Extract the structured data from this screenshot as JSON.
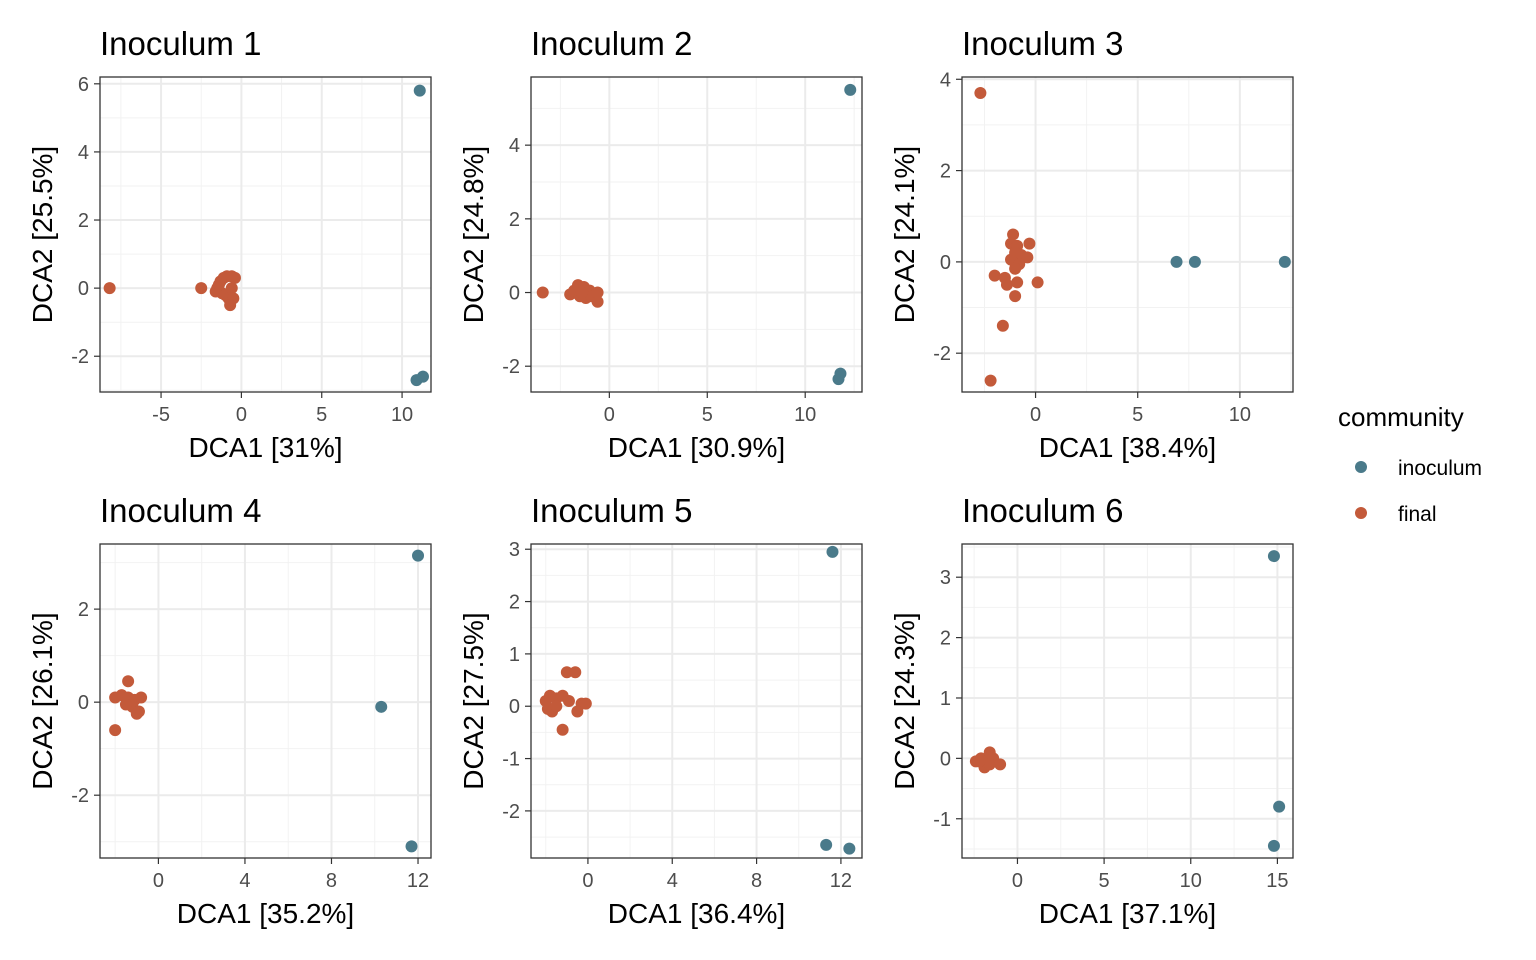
{
  "legend": {
    "title": "community",
    "items": [
      {
        "label": "inoculum",
        "color": "#4a7a8a"
      },
      {
        "label": "final",
        "color": "#c35a3a"
      }
    ]
  },
  "chart_data": [
    {
      "type": "scatter",
      "title": "Inoculum 1",
      "xlabel": "DCA1   [31%]",
      "ylabel": "DCA2   [25.5%]",
      "xlim": [
        -8.8,
        11.8
      ],
      "ylim": [
        -3.05,
        6.2
      ],
      "xticks": [
        -5,
        0,
        5,
        10
      ],
      "xtick_labels": [
        "-5",
        "0",
        "5",
        "10"
      ],
      "yticks": [
        -2,
        0,
        2,
        4,
        6
      ],
      "ytick_labels": [
        "-2",
        "0",
        "2",
        "4",
        "6"
      ],
      "grid": true,
      "series": [
        {
          "name": "inoculum",
          "color": "#4a7a8a",
          "points": [
            [
              11.1,
              5.8
            ],
            [
              10.9,
              -2.7
            ],
            [
              11.3,
              -2.6
            ]
          ]
        },
        {
          "name": "final",
          "color": "#c35a3a",
          "points": [
            [
              -8.2,
              0.0
            ],
            [
              -2.5,
              0.0
            ],
            [
              -1.5,
              0.0
            ],
            [
              -1.3,
              0.2
            ],
            [
              -1.1,
              0.3
            ],
            [
              -0.9,
              0.35
            ],
            [
              -0.6,
              0.35
            ],
            [
              -0.4,
              0.3
            ],
            [
              -1.6,
              -0.1
            ],
            [
              -1.2,
              -0.15
            ],
            [
              -1.0,
              -0.2
            ],
            [
              -0.8,
              -0.3
            ],
            [
              -0.5,
              -0.3
            ],
            [
              -0.7,
              -0.5
            ],
            [
              -1.4,
              0.1
            ],
            [
              -0.6,
              0.0
            ]
          ]
        }
      ]
    },
    {
      "type": "scatter",
      "title": "Inoculum 2",
      "xlabel": "DCA1   [30.9%]",
      "ylabel": "DCA2   [24.8%]",
      "xlim": [
        -4.0,
        12.9
      ],
      "ylim": [
        -2.7,
        5.85
      ],
      "xticks": [
        0,
        5,
        10
      ],
      "xtick_labels": [
        "0",
        "5",
        "10"
      ],
      "yticks": [
        -2,
        0,
        2,
        4
      ],
      "ytick_labels": [
        "-2",
        "0",
        "2",
        "4"
      ],
      "grid": true,
      "series": [
        {
          "name": "inoculum",
          "color": "#4a7a8a",
          "points": [
            [
              12.3,
              5.5
            ],
            [
              11.8,
              -2.2
            ],
            [
              11.7,
              -2.35
            ]
          ]
        },
        {
          "name": "final",
          "color": "#c35a3a",
          "points": [
            [
              -3.4,
              0.0
            ],
            [
              -2.0,
              -0.05
            ],
            [
              -1.6,
              0.2
            ],
            [
              -1.3,
              0.15
            ],
            [
              -1.0,
              0.05
            ],
            [
              -0.7,
              -0.1
            ],
            [
              -1.8,
              0.05
            ],
            [
              -1.5,
              -0.1
            ],
            [
              -1.2,
              -0.15
            ],
            [
              -0.9,
              -0.1
            ],
            [
              -0.6,
              -0.25
            ],
            [
              -1.4,
              0.0
            ],
            [
              -0.6,
              0.0
            ]
          ]
        }
      ]
    },
    {
      "type": "scatter",
      "title": "Inoculum 3",
      "xlabel": "DCA1   [38.4%]",
      "ylabel": "DCA2   [24.1%]",
      "xlim": [
        -3.6,
        12.6
      ],
      "ylim": [
        -2.85,
        4.05
      ],
      "xticks": [
        0,
        5,
        10
      ],
      "xtick_labels": [
        "0",
        "5",
        "10"
      ],
      "yticks": [
        -2,
        0,
        2,
        4
      ],
      "ytick_labels": [
        "-2",
        "0",
        "2",
        "4"
      ],
      "grid": true,
      "series": [
        {
          "name": "inoculum",
          "color": "#4a7a8a",
          "points": [
            [
              6.9,
              0.0
            ],
            [
              7.8,
              0.0
            ],
            [
              12.2,
              0.0
            ]
          ]
        },
        {
          "name": "final",
          "color": "#c35a3a",
          "points": [
            [
              -2.7,
              3.7
            ],
            [
              -1.1,
              0.6
            ],
            [
              -1.2,
              0.4
            ],
            [
              -0.9,
              0.35
            ],
            [
              -0.3,
              0.4
            ],
            [
              -1.0,
              0.2
            ],
            [
              -0.7,
              0.15
            ],
            [
              -0.4,
              0.1
            ],
            [
              -1.2,
              0.05
            ],
            [
              -0.8,
              -0.05
            ],
            [
              -1.0,
              -0.15
            ],
            [
              -2.0,
              -0.3
            ],
            [
              -1.5,
              -0.35
            ],
            [
              -1.4,
              -0.5
            ],
            [
              -0.9,
              -0.45
            ],
            [
              0.1,
              -0.45
            ],
            [
              -1.0,
              -0.75
            ],
            [
              -1.6,
              -1.4
            ],
            [
              -2.2,
              -2.6
            ]
          ]
        }
      ]
    },
    {
      "type": "scatter",
      "title": "Inoculum 4",
      "xlabel": "DCA1   [35.2%]",
      "ylabel": "DCA2   [26.1%]",
      "xlim": [
        -2.7,
        12.6
      ],
      "ylim": [
        -3.35,
        3.4
      ],
      "xticks": [
        0,
        4,
        8,
        12
      ],
      "xtick_labels": [
        "0",
        "4",
        "8",
        "12"
      ],
      "yticks": [
        -2,
        0,
        2
      ],
      "ytick_labels": [
        "-2",
        "0",
        "2"
      ],
      "grid": true,
      "series": [
        {
          "name": "inoculum",
          "color": "#4a7a8a",
          "points": [
            [
              12.0,
              3.15
            ],
            [
              10.3,
              -0.1
            ],
            [
              11.7,
              -3.1
            ]
          ]
        },
        {
          "name": "final",
          "color": "#c35a3a",
          "points": [
            [
              -2.0,
              0.1
            ],
            [
              -1.7,
              0.15
            ],
            [
              -1.4,
              0.1
            ],
            [
              -1.1,
              0.05
            ],
            [
              -0.8,
              0.1
            ],
            [
              -1.4,
              0.45
            ],
            [
              -1.2,
              -0.1
            ],
            [
              -0.9,
              -0.2
            ],
            [
              -1.5,
              -0.05
            ],
            [
              -1.0,
              -0.25
            ],
            [
              -2.0,
              -0.6
            ]
          ]
        }
      ]
    },
    {
      "type": "scatter",
      "title": "Inoculum 5",
      "xlabel": "DCA1   [36.4%]",
      "ylabel": "DCA2   [27.5%]",
      "xlim": [
        -2.7,
        13.0
      ],
      "ylim": [
        -2.9,
        3.1
      ],
      "xticks": [
        0,
        4,
        8,
        12
      ],
      "xtick_labels": [
        "0",
        "4",
        "8",
        "12"
      ],
      "yticks": [
        -2,
        -1,
        0,
        1,
        2,
        3
      ],
      "ytick_labels": [
        "-2",
        "-1",
        "0",
        "1",
        "2",
        "3"
      ],
      "grid": true,
      "series": [
        {
          "name": "inoculum",
          "color": "#4a7a8a",
          "points": [
            [
              11.6,
              2.95
            ],
            [
              11.3,
              -2.65
            ],
            [
              12.4,
              -2.72
            ]
          ]
        },
        {
          "name": "final",
          "color": "#c35a3a",
          "points": [
            [
              -2.0,
              0.1
            ],
            [
              -1.8,
              0.2
            ],
            [
              -1.5,
              0.15
            ],
            [
              -1.2,
              0.2
            ],
            [
              -0.9,
              0.1
            ],
            [
              -1.0,
              0.65
            ],
            [
              -0.6,
              0.65
            ],
            [
              -0.3,
              0.05
            ],
            [
              -0.1,
              0.05
            ],
            [
              -1.9,
              -0.05
            ],
            [
              -1.7,
              -0.1
            ],
            [
              -1.5,
              0.0
            ],
            [
              -0.5,
              -0.1
            ],
            [
              -1.2,
              -0.45
            ]
          ]
        }
      ]
    },
    {
      "type": "scatter",
      "title": "Inoculum 6",
      "xlabel": "DCA1   [37.1%]",
      "ylabel": "DCA2   [24.3%]",
      "xlim": [
        -3.2,
        15.9
      ],
      "ylim": [
        -1.65,
        3.55
      ],
      "xticks": [
        0,
        5,
        10,
        15
      ],
      "xtick_labels": [
        "0",
        "5",
        "10",
        "15"
      ],
      "yticks": [
        -1,
        0,
        1,
        2,
        3
      ],
      "ytick_labels": [
        "-1",
        "0",
        "1",
        "2",
        "3"
      ],
      "grid": true,
      "series": [
        {
          "name": "inoculum",
          "color": "#4a7a8a",
          "points": [
            [
              14.8,
              3.35
            ],
            [
              15.1,
              -0.8
            ],
            [
              14.8,
              -1.45
            ]
          ]
        },
        {
          "name": "final",
          "color": "#c35a3a",
          "points": [
            [
              -2.4,
              -0.05
            ],
            [
              -2.1,
              0.0
            ],
            [
              -1.8,
              -0.05
            ],
            [
              -1.6,
              0.1
            ],
            [
              -1.4,
              0.0
            ],
            [
              -1.9,
              -0.15
            ],
            [
              -1.6,
              -0.1
            ],
            [
              -1.0,
              -0.1
            ],
            [
              -2.2,
              -0.05
            ]
          ]
        }
      ]
    }
  ]
}
